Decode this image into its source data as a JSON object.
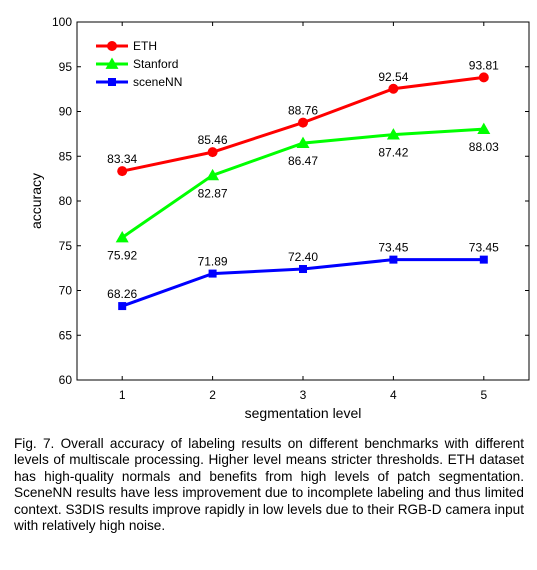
{
  "chart_data": {
    "type": "line",
    "xlabel": "segmentation level",
    "ylabel": "accuracy",
    "x": [
      1,
      2,
      3,
      4,
      5
    ],
    "xticks": [
      "1",
      "2",
      "3",
      "4",
      "5"
    ],
    "xlim": [
      0.5,
      5.5
    ],
    "ylim": [
      60,
      100
    ],
    "yticks": [
      "60",
      "65",
      "70",
      "75",
      "80",
      "85",
      "90",
      "95",
      "100"
    ],
    "grid": false,
    "legend_position": "top-left",
    "series": [
      {
        "name": "ETH",
        "color": "#ff0000",
        "marker": "circle",
        "values": [
          83.34,
          85.46,
          88.76,
          92.54,
          93.81
        ],
        "labels": [
          "83.34",
          "85.46",
          "88.76",
          "92.54",
          "93.81"
        ],
        "label_position": "above"
      },
      {
        "name": "Stanford",
        "color": "#00ff00",
        "marker": "triangle",
        "values": [
          75.92,
          82.87,
          86.47,
          87.42,
          88.03
        ],
        "labels": [
          "75.92",
          "82.87",
          "86.47",
          "87.42",
          "88.03"
        ],
        "label_position": "below"
      },
      {
        "name": "sceneNN",
        "color": "#0000ff",
        "marker": "square",
        "values": [
          68.26,
          71.89,
          72.4,
          73.45,
          73.45
        ],
        "labels": [
          "68.26",
          "71.89",
          "72.40",
          "73.45",
          "73.45"
        ],
        "label_position": "above"
      }
    ]
  },
  "caption": "Fig. 7. Overall accuracy of labeling results on different benchmarks with different levels of multiscale processing. Higher level means stricter thresholds. ETH dataset has high-quality normals and benefits from high levels of patch segmentation. SceneNN results have less improvement due to incomplete labeling and thus limited context. S3DIS results improve rapidly in low levels due to their RGB-D camera input with relatively high noise."
}
